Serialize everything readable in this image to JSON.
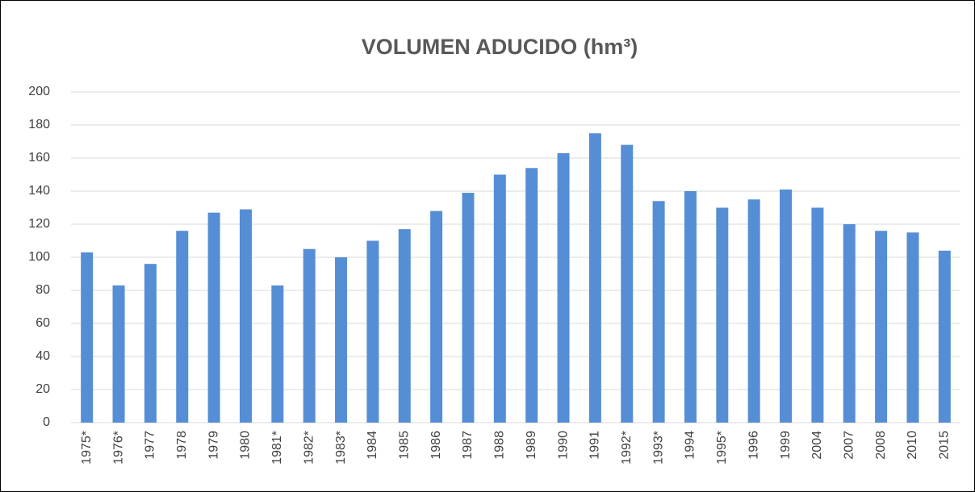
{
  "chart_data": {
    "type": "bar",
    "title": "VOLUMEN ADUCIDO (hm³)",
    "categories": [
      "1975*",
      "1976*",
      "1977",
      "1978",
      "1979",
      "1980",
      "1981*",
      "1982*",
      "1983*",
      "1984",
      "1985",
      "1986",
      "1987",
      "1988",
      "1989",
      "1990",
      "1991",
      "1992*",
      "1993*",
      "1994",
      "1995*",
      "1996",
      "1999",
      "2004",
      "2007",
      "2008",
      "2010",
      "2015"
    ],
    "values": [
      103,
      83,
      96,
      116,
      127,
      129,
      83,
      105,
      100,
      110,
      117,
      128,
      139,
      150,
      154,
      163,
      175,
      168,
      134,
      140,
      130,
      135,
      141,
      130,
      120,
      116,
      115,
      104
    ],
    "color": "#558ed5",
    "ylim": [
      0,
      200
    ],
    "yticks": [
      0,
      20,
      40,
      60,
      80,
      100,
      120,
      140,
      160,
      180,
      200
    ],
    "grid": true
  }
}
